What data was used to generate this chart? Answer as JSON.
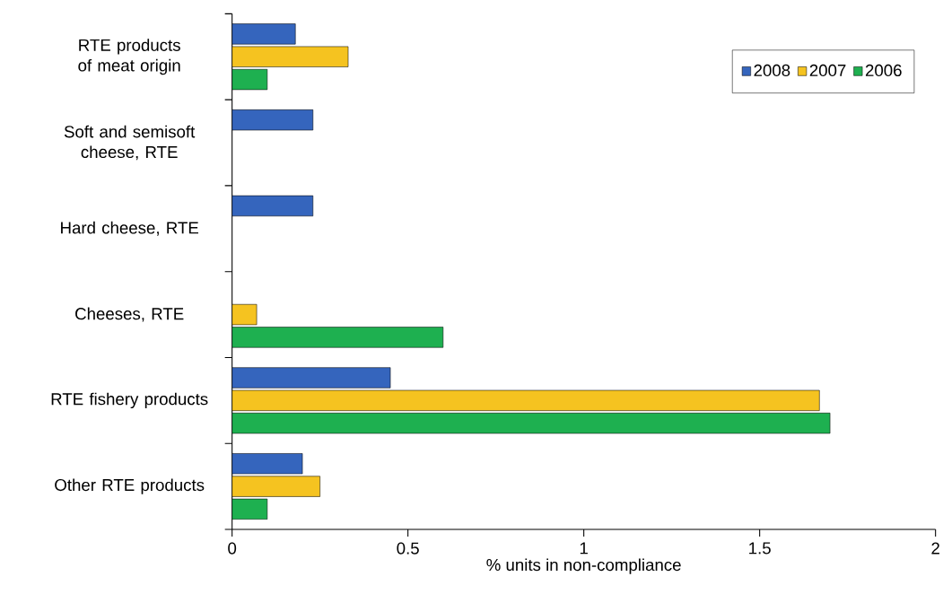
{
  "chart_data": {
    "type": "bar",
    "orientation": "horizontal",
    "xlabel": "% units in non-compliance",
    "categories": [
      "RTE products of meat origin",
      "Soft and semisoft cheese, RTE",
      "Hard cheese, RTE",
      "Cheeses, RTE",
      "RTE fishery products",
      "Other RTE  products"
    ],
    "series": [
      {
        "name": "2008",
        "color": "#3565bd",
        "values": [
          0.18,
          0.23,
          0.23,
          null,
          0.45,
          0.2
        ]
      },
      {
        "name": "2007",
        "color": "#f5c320",
        "values": [
          0.33,
          null,
          null,
          0.07,
          1.67,
          0.25
        ]
      },
      {
        "name": "2006",
        "color": "#1eb050",
        "values": [
          0.1,
          null,
          null,
          0.6,
          1.7,
          0.1
        ]
      }
    ],
    "xlim": [
      0,
      2
    ],
    "xticks": [
      0,
      0.5,
      1,
      1.5,
      2
    ],
    "grid": false,
    "legend": "top right"
  }
}
